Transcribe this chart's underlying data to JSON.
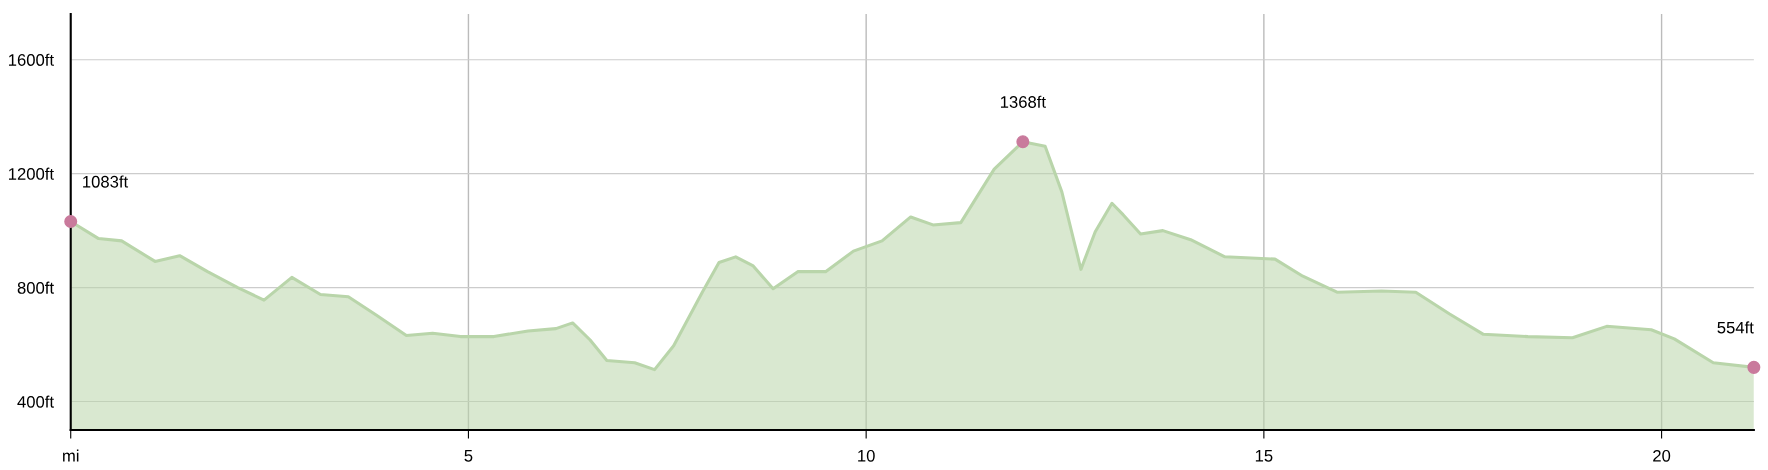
{
  "chart_data": {
    "type": "area",
    "x": [
      0,
      0.35,
      0.64,
      1.06,
      1.37,
      1.72,
      2.1,
      2.43,
      2.78,
      3.14,
      3.49,
      3.84,
      4.22,
      4.55,
      4.9,
      5.32,
      5.75,
      6.1,
      6.31,
      6.53,
      6.74,
      7.09,
      7.34,
      7.58,
      7.94,
      8.15,
      8.36,
      8.58,
      8.83,
      9.14,
      9.49,
      9.84,
      10.2,
      10.56,
      10.84,
      11.19,
      11.61,
      11.97,
      12.25,
      12.46,
      12.7,
      12.88,
      13.09,
      13.23,
      13.45,
      13.73,
      14.08,
      14.51,
      15.14,
      15.49,
      15.92,
      16.48,
      16.91,
      17.33,
      17.76,
      18.32,
      18.88,
      19.31,
      19.87,
      20.16,
      20.65,
      21.16
    ],
    "series": [
      {
        "color": "#b9d5aa",
        "values": [
          1032,
          972,
          964,
          892,
          912,
          856,
          800,
          756,
          836,
          776,
          768,
          704,
          632,
          640,
          628,
          628,
          648,
          656,
          676,
          616,
          544,
          536,
          512,
          596,
          784,
          888,
          908,
          876,
          796,
          856,
          856,
          928,
          964,
          1048,
          1020,
          1028,
          1216,
          1312,
          1296,
          1136,
          864,
          996,
          1096,
          1056,
          988,
          1000,
          968,
          908,
          900,
          840,
          784,
          788,
          784,
          708,
          636,
          628,
          624,
          664,
          652,
          620,
          536,
          520
        ]
      },
      {
        "type": "scatter",
        "color": "#c97a9c",
        "x": [
          0,
          11.97,
          21.16
        ],
        "values": [
          1032,
          1312,
          520
        ],
        "marker": "circle"
      }
    ],
    "annotations": [
      {
        "text": "1083ft",
        "x": 0,
        "y": 1032
      },
      {
        "text": "1368ft",
        "x": 11.97,
        "y": 1312
      },
      {
        "text": "554ft",
        "x": 21.16,
        "y": 520
      }
    ],
    "xlim": [
      0,
      21.16
    ],
    "ylim": [
      300,
      1760
    ],
    "xticks": [
      {
        "value": 0,
        "label": "mi"
      },
      5,
      10,
      15,
      20
    ],
    "yticks": [
      {
        "value": 400,
        "label": "400ft"
      },
      {
        "value": 800,
        "label": "800ft"
      },
      {
        "value": 1200,
        "label": "1200ft"
      },
      {
        "value": 1600,
        "label": "1600ft"
      }
    ],
    "grid": true
  }
}
